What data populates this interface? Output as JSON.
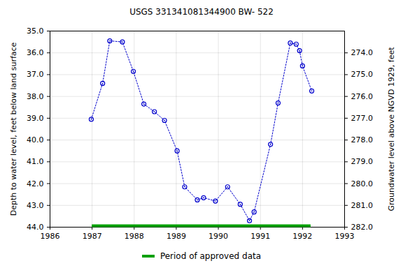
{
  "chart_data": {
    "type": "line",
    "title": "USGS 331341081344900 BW- 522",
    "ylabel": "Depth to water level, feet below land surface",
    "y2label": "Groundwater level above NGVD 1929, feet",
    "x": [
      1986.98,
      1987.25,
      1987.42,
      1987.72,
      1987.98,
      1988.23,
      1988.48,
      1988.72,
      1989.02,
      1989.2,
      1989.5,
      1989.65,
      1989.93,
      1990.22,
      1990.52,
      1990.74,
      1990.85,
      1991.24,
      1991.42,
      1991.71,
      1991.85,
      1991.93,
      1992.0,
      1992.22
    ],
    "values": [
      39.05,
      37.4,
      35.45,
      35.5,
      36.85,
      38.35,
      38.7,
      39.1,
      40.5,
      42.15,
      42.75,
      42.65,
      42.8,
      42.15,
      42.95,
      43.7,
      43.3,
      40.2,
      38.3,
      35.55,
      35.6,
      35.9,
      36.6,
      37.75
    ],
    "color": "#0000cc",
    "marker": "circle",
    "line_style": "dotted",
    "xlim": [
      1986,
      1993
    ],
    "xticks": [
      1986,
      1987,
      1988,
      1989,
      1990,
      1991,
      1992,
      1993
    ],
    "ylim": [
      35,
      44
    ],
    "yticks": [
      {
        "value": 35,
        "label": "35.0"
      },
      {
        "value": 36,
        "label": "36.0"
      },
      {
        "value": 37,
        "label": "37.0"
      },
      {
        "value": 38,
        "label": "38.0"
      },
      {
        "value": 39,
        "label": "39.0"
      },
      {
        "value": 40,
        "label": "40.0"
      },
      {
        "value": 41,
        "label": "41.0"
      },
      {
        "value": 42,
        "label": "42.0"
      },
      {
        "value": 43,
        "label": "43.0"
      },
      {
        "value": 44,
        "label": "44.0"
      }
    ],
    "y2lim": [
      282,
      273
    ],
    "y2ticks": [
      {
        "value": 274,
        "label": "274.0"
      },
      {
        "value": 275,
        "label": "275.0"
      },
      {
        "value": 276,
        "label": "276.0"
      },
      {
        "value": 277,
        "label": "277.0"
      },
      {
        "value": 278,
        "label": "278.0"
      },
      {
        "value": 279,
        "label": "279.0"
      },
      {
        "value": 280,
        "label": "280.0"
      },
      {
        "value": 281,
        "label": "281.0"
      },
      {
        "value": 282,
        "label": "282.0"
      }
    ],
    "grid": true,
    "legend": "bottom",
    "periods": [
      {
        "name": "Period of approved data",
        "color": "#00a000",
        "start": 1987,
        "end": 1992.2
      }
    ]
  }
}
